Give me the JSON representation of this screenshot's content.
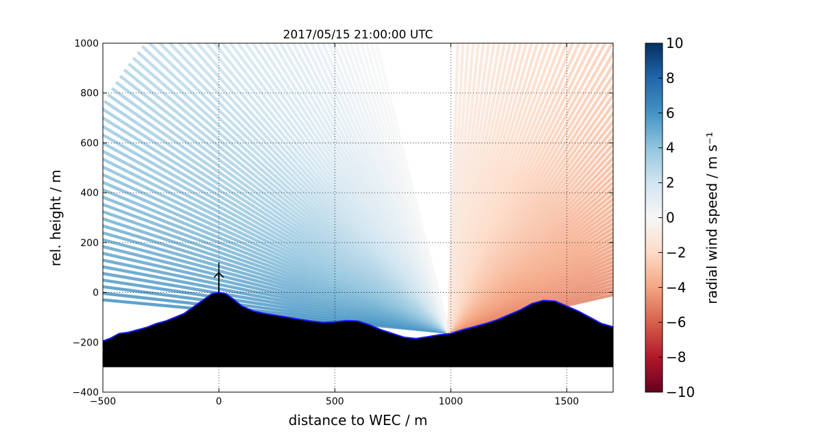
{
  "chart_data": {
    "type": "heatmap",
    "title": "2017/05/15 21:00:00 UTC",
    "xlabel": "distance to WEC / m",
    "ylabel": "rel. height / m",
    "xlim": [
      -500,
      1700
    ],
    "ylim": [
      -400,
      1000
    ],
    "xticks": [
      -500,
      0,
      500,
      1000,
      1500
    ],
    "yticks": [
      -400,
      -200,
      0,
      200,
      400,
      600,
      800,
      1000
    ],
    "xtick_labels": [
      "−500",
      "0",
      "500",
      "1000",
      "1500"
    ],
    "ytick_labels": [
      "−400",
      "−200",
      "0",
      "200",
      "400",
      "600",
      "800",
      "1000"
    ],
    "grid": true,
    "colorbar": {
      "label": "radial wind speed / m s⁻¹",
      "range": [
        -10,
        10
      ],
      "ticks": [
        -10,
        -8,
        -6,
        -4,
        -2,
        0,
        2,
        4,
        6,
        8,
        10
      ],
      "tick_labels": [
        "−10",
        "−8",
        "−6",
        "−4",
        "−2",
        "0",
        "2",
        "4",
        "6",
        "8",
        "10"
      ],
      "colormap": "RdBu",
      "colors": [
        "#67001f",
        "#b2182b",
        "#d6604d",
        "#f4a582",
        "#fddbc7",
        "#f7f7f7",
        "#d1e5f0",
        "#92c5de",
        "#4393c3",
        "#2166ac",
        "#053061"
      ]
    },
    "scan_left": {
      "origin": [
        990,
        -160
      ],
      "max_range_m": 1750,
      "elevation_deg": [
        5,
        75
      ],
      "speed_near_ground": 6,
      "speed_aloft": 0
    },
    "scan_right": {
      "origin": [
        990,
        -160
      ],
      "max_range_m": 1750,
      "elevation_deg": [
        12,
        88
      ],
      "speed_near_ground": -5,
      "speed_aloft": -1
    },
    "terrain": {
      "base": -300,
      "x": [
        -500,
        -470,
        -430,
        -390,
        -350,
        -310,
        -270,
        -230,
        -190,
        -150,
        -120,
        -90,
        -60,
        -30,
        0,
        30,
        60,
        100,
        150,
        200,
        250,
        300,
        350,
        400,
        450,
        500,
        550,
        600,
        650,
        700,
        750,
        800,
        850,
        900,
        950,
        1000,
        1050,
        1100,
        1150,
        1200,
        1250,
        1300,
        1350,
        1400,
        1450,
        1500,
        1550,
        1600,
        1650,
        1700
      ],
      "y": [
        -195,
        -185,
        -165,
        -160,
        -150,
        -140,
        -125,
        -115,
        -100,
        -85,
        -65,
        -45,
        -25,
        -5,
        0,
        -5,
        -25,
        -55,
        -75,
        -85,
        -92,
        -100,
        -108,
        -115,
        -120,
        -118,
        -113,
        -115,
        -130,
        -150,
        -165,
        -180,
        -185,
        -178,
        -170,
        -165,
        -150,
        -138,
        -125,
        -110,
        -90,
        -70,
        -45,
        -32,
        -35,
        -55,
        -75,
        -100,
        -125,
        -138
      ]
    },
    "turbine": {
      "x": 0,
      "hub_height": 80,
      "rotor_radius": 40
    }
  }
}
